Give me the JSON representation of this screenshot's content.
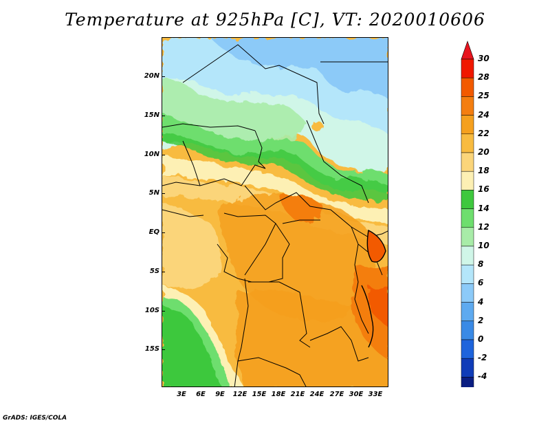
{
  "title": "Temperature at 925hPa [C], VT: 2020010606",
  "credit": "GrADS: IGES/COLA",
  "map": {
    "lat_labels": [
      "20N",
      "15N",
      "10N",
      "5N",
      "EQ",
      "5S",
      "10S",
      "15S"
    ],
    "lon_labels": [
      "3E",
      "6E",
      "9E",
      "12E",
      "15E",
      "18E",
      "21E",
      "24E",
      "27E",
      "30E",
      "33E"
    ]
  },
  "colorbar": {
    "labels": [
      "30",
      "28",
      "25",
      "24",
      "22",
      "20",
      "18",
      "16",
      "14",
      "12",
      "10",
      "8",
      "6",
      "4",
      "2",
      "0",
      "-2",
      "-4"
    ],
    "colors": [
      "#f01800",
      "#f25a00",
      "#f47e10",
      "#f5a01e",
      "#f8bb40",
      "#fbd57a",
      "#fdf0b4",
      "#3ec83e",
      "#6ede6e",
      "#a8eca8",
      "#d0f6e8",
      "#b4e6fa",
      "#8ccaf8",
      "#5eaaf0",
      "#3a8ae6",
      "#1e64dc",
      "#0f3cb8",
      "#0a1e82"
    ],
    "over_color": "#e8141e",
    "under_color": "#dcdcf4"
  }
}
